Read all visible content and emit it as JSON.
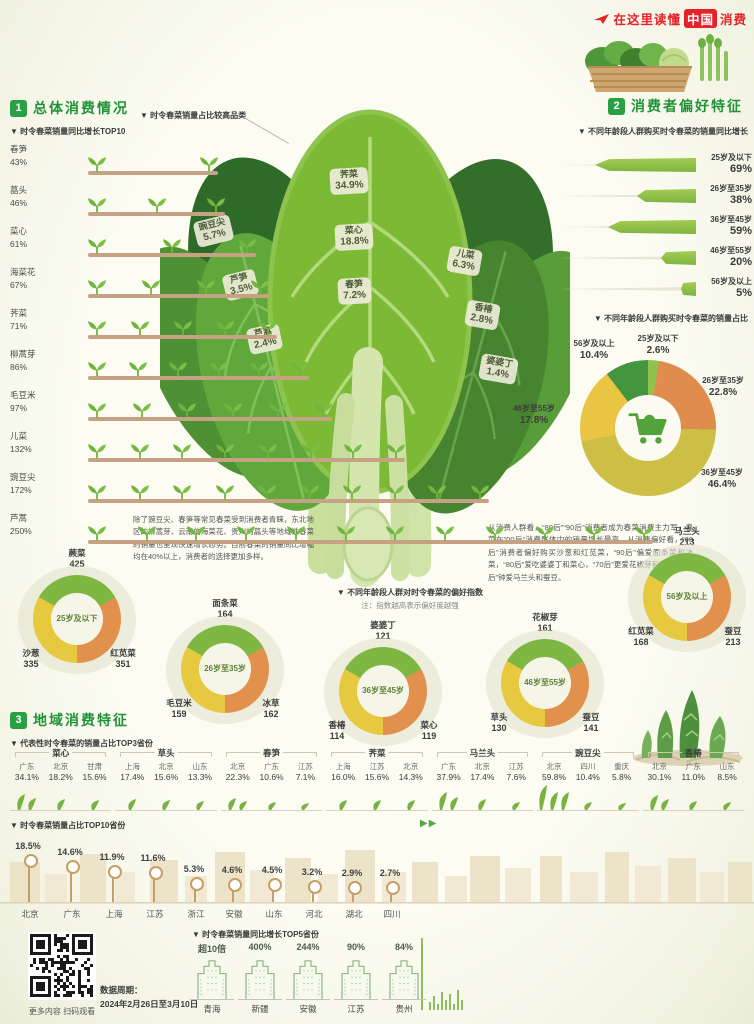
{
  "header": {
    "tagline_prefix": "在这里读懂",
    "tagline_highlight": "中国",
    "tagline_suffix": "消费",
    "accent_red": "#e62129"
  },
  "section1": {
    "badge": "1",
    "title": "总体消费情况",
    "subtitle": "▼ 时令春菜销量同比增长TOP10",
    "items": [
      {
        "name": "春笋",
        "value": "43%",
        "pct": 43,
        "sprouts": 2
      },
      {
        "name": "蕌头",
        "value": "46%",
        "pct": 46,
        "sprouts": 3
      },
      {
        "name": "菜心",
        "value": "61%",
        "pct": 61,
        "sprouts": 3
      },
      {
        "name": "海菜花",
        "value": "67%",
        "pct": 67,
        "sprouts": 4
      },
      {
        "name": "荠菜",
        "value": "71%",
        "pct": 71,
        "sprouts": 5
      },
      {
        "name": "柳蒿芽",
        "value": "86%",
        "pct": 86,
        "sprouts": 6
      },
      {
        "name": "毛豆米",
        "value": "97%",
        "pct": 97,
        "sprouts": 6
      },
      {
        "name": "儿菜",
        "value": "132%",
        "pct": 132,
        "sprouts": 8
      },
      {
        "name": "豌豆尖",
        "value": "172%",
        "pct": 172,
        "sprouts": 10
      },
      {
        "name": "芦蒿",
        "value": "250%",
        "pct": 250,
        "sprouts": 12
      }
    ]
  },
  "center_chart": {
    "caption": "▼ 时令春菜销量占比较高品类",
    "labels": [
      {
        "name": "豌豆尖",
        "value": "5.7%"
      },
      {
        "name": "芦笋",
        "value": "3.5%"
      },
      {
        "name": "芦蒿",
        "value": "2.4%"
      },
      {
        "name": "荠菜",
        "value": "34.9%"
      },
      {
        "name": "菜心",
        "value": "18.8%"
      },
      {
        "name": "春笋",
        "value": "7.2%"
      },
      {
        "name": "儿菜",
        "value": "6.3%"
      },
      {
        "name": "香椿",
        "value": "2.8%"
      },
      {
        "name": "婆婆丁",
        "value": "1.4%"
      }
    ]
  },
  "section2": {
    "badge": "2",
    "title": "消费者偏好特征",
    "growth_subtitle": "▼ 不同年龄段人群购买时令春菜的销量同比增长",
    "growth": [
      {
        "label": "25岁及以下",
        "value": "69%",
        "pct": 69
      },
      {
        "label": "26岁至35岁",
        "value": "38%",
        "pct": 38
      },
      {
        "label": "36岁至45岁",
        "value": "59%",
        "pct": 59
      },
      {
        "label": "46岁至55岁",
        "value": "20%",
        "pct": 20
      },
      {
        "label": "56岁及以上",
        "value": "5%",
        "pct": 5
      }
    ],
    "share_subtitle": "▼ 不同年龄段人群购买时令春菜的销量占比",
    "share": [
      {
        "label": "25岁及以下",
        "value": "2.6%",
        "pct": 2.6,
        "color": "#8fc34c"
      },
      {
        "label": "26岁至35岁",
        "value": "22.8%",
        "pct": 22.8,
        "color": "#e08c4c"
      },
      {
        "label": "36岁至45岁",
        "value": "46.4%",
        "pct": 46.4,
        "color": "#cdbf45"
      },
      {
        "label": "46岁至55岁",
        "value": "17.8%",
        "pct": 17.8,
        "color": "#eac543"
      },
      {
        "label": "56岁及以上",
        "value": "10.4%",
        "pct": 10.4,
        "color": "#459540"
      }
    ]
  },
  "paragraphs": {
    "left": "除了豌豆尖、春笋等常见春菜受到消费者青睐，东北地区的柳蒿芽、云南的海菜花、贵州的蕌头等地域性春菜的销量也呈现快速增长态势。目前春菜的销量同比增幅均在40%以上，消费者的选择更加多样。",
    "right": "从消费人群看，“80后”“90后”消费者成为春菜消费主力军，春菜在“00后”消费群体中的销量增长最高。从消费偏好看，“00后”消费者偏好购买沙葱和红苋菜，“90后”偏爱面条菜和冰菜，“80后”爱吃婆婆丁和菜心，“70后”更爱花椒芽和草头，“60后”钟爱马兰头和蚕豆。"
  },
  "preference": {
    "caption": "▼ 不同年龄段人群对时令春菜的偏好指数",
    "note": "注：指数越高表示偏好度越强",
    "donuts": [
      {
        "age": "25岁及以下",
        "top_name": "蕨菜",
        "top_value": "425",
        "left_name": "沙葱",
        "left_value": "335",
        "right_name": "红苋菜",
        "right_value": "351"
      },
      {
        "age": "26岁至35岁",
        "top_name": "面条菜",
        "top_value": "164",
        "left_name": "毛豆米",
        "left_value": "159",
        "right_name": "冰草",
        "right_value": "162"
      },
      {
        "age": "36岁至45岁",
        "top_name": "婆婆丁",
        "top_value": "121",
        "left_name": "香椿",
        "left_value": "114",
        "right_name": "菜心",
        "right_value": "119"
      },
      {
        "age": "46岁至55岁",
        "top_name": "花椒芽",
        "top_value": "161",
        "left_name": "草头",
        "left_value": "130",
        "right_name": "蚕豆",
        "right_value": "141"
      },
      {
        "age": "56岁及以上",
        "top_name": "马兰头",
        "top_value": "213",
        "left_name": "红苋菜",
        "left_value": "168",
        "right_name": "蚕豆",
        "right_value": "213"
      }
    ]
  },
  "section3": {
    "badge": "3",
    "title": "地域消费特征",
    "top3_subtitle": "▼ 代表性时令春菜的销量占比TOP3省份",
    "groups": [
      {
        "name": "菜心",
        "cols": [
          {
            "p": "广东",
            "v": "34.1%",
            "pct": 34.1
          },
          {
            "p": "北京",
            "v": "18.2%",
            "pct": 18.2
          },
          {
            "p": "甘肃",
            "v": "15.6%",
            "pct": 15.6
          }
        ]
      },
      {
        "name": "草头",
        "cols": [
          {
            "p": "上海",
            "v": "17.4%",
            "pct": 17.4
          },
          {
            "p": "北京",
            "v": "15.6%",
            "pct": 15.6
          },
          {
            "p": "山东",
            "v": "13.3%",
            "pct": 13.3
          }
        ]
      },
      {
        "name": "春笋",
        "cols": [
          {
            "p": "北京",
            "v": "22.3%",
            "pct": 22.3
          },
          {
            "p": "广东",
            "v": "10.6%",
            "pct": 10.6
          },
          {
            "p": "江苏",
            "v": "7.1%",
            "pct": 7.1
          }
        ]
      },
      {
        "name": "荠菜",
        "cols": [
          {
            "p": "上海",
            "v": "16.0%",
            "pct": 16
          },
          {
            "p": "江苏",
            "v": "15.6%",
            "pct": 15.6
          },
          {
            "p": "北京",
            "v": "14.3%",
            "pct": 14.3
          }
        ]
      },
      {
        "name": "马兰头",
        "cols": [
          {
            "p": "广东",
            "v": "37.9%",
            "pct": 37.9
          },
          {
            "p": "北京",
            "v": "17.4%",
            "pct": 17.4
          },
          {
            "p": "江苏",
            "v": "7.6%",
            "pct": 7.6
          }
        ]
      },
      {
        "name": "豌豆尖",
        "cols": [
          {
            "p": "北京",
            "v": "59.8%",
            "pct": 59.8
          },
          {
            "p": "四川",
            "v": "10.4%",
            "pct": 10.4
          },
          {
            "p": "重庆",
            "v": "5.8%",
            "pct": 5.8
          }
        ]
      },
      {
        "name": "香椿",
        "cols": [
          {
            "p": "北京",
            "v": "30.1%",
            "pct": 30.1
          },
          {
            "p": "广东",
            "v": "11.0%",
            "pct": 11
          },
          {
            "p": "山东",
            "v": "8.5%",
            "pct": 8.5
          }
        ]
      }
    ],
    "more_arrows": "▶▶",
    "top10_subtitle": "▼ 时令春菜销量占比TOP10省份",
    "top10": [
      {
        "p": "北京",
        "v": "18.5%",
        "pct": 18.5
      },
      {
        "p": "广东",
        "v": "14.6%",
        "pct": 14.6
      },
      {
        "p": "上海",
        "v": "11.9%",
        "pct": 11.9
      },
      {
        "p": "江苏",
        "v": "11.6%",
        "pct": 11.6
      },
      {
        "p": "浙江",
        "v": "5.3%",
        "pct": 5.3
      },
      {
        "p": "安徽",
        "v": "4.6%",
        "pct": 4.6
      },
      {
        "p": "山东",
        "v": "4.5%",
        "pct": 4.5
      },
      {
        "p": "河北",
        "v": "3.2%",
        "pct": 3.2
      },
      {
        "p": "湖北",
        "v": "2.9%",
        "pct": 2.9
      },
      {
        "p": "四川",
        "v": "2.7%",
        "pct": 2.7
      }
    ],
    "top5_subtitle": "▼ 时令春菜销量同比增长TOP5省份",
    "top5": [
      {
        "p": "青海",
        "v": "超10倍"
      },
      {
        "p": "新疆",
        "v": "400%"
      },
      {
        "p": "安徽",
        "v": "244%"
      },
      {
        "p": "江苏",
        "v": "90%"
      },
      {
        "p": "贵州",
        "v": "84%"
      }
    ]
  },
  "footer": {
    "qr_caption": "更多内容 扫码观看",
    "period_label": "数据周期：",
    "period_value": "2024年2月26日至3月10日"
  },
  "chart_data": [
    {
      "type": "bar",
      "title": "时令春菜销量同比增长TOP10",
      "categories": [
        "春笋",
        "蕌头",
        "菜心",
        "海菜花",
        "荠菜",
        "柳蒿芽",
        "毛豆米",
        "儿菜",
        "豌豆尖",
        "芦蒿"
      ],
      "values": [
        43,
        46,
        61,
        67,
        71,
        86,
        97,
        132,
        172,
        250
      ],
      "unit": "%"
    },
    {
      "type": "bar",
      "title": "时令春菜销量占比较高品类",
      "categories": [
        "荠菜",
        "菜心",
        "春笋",
        "儿菜",
        "豌豆尖",
        "芦笋",
        "香椿",
        "芦蒿",
        "婆婆丁"
      ],
      "values": [
        34.9,
        18.8,
        7.2,
        6.3,
        5.7,
        3.5,
        2.8,
        2.4,
        1.4
      ],
      "unit": "%"
    },
    {
      "type": "bar",
      "title": "不同年龄段人群购买时令春菜的销量同比增长",
      "categories": [
        "25岁及以下",
        "26岁至35岁",
        "36岁至45岁",
        "46岁至55岁",
        "56岁及以上"
      ],
      "values": [
        69,
        38,
        59,
        20,
        5
      ],
      "unit": "%"
    },
    {
      "type": "pie",
      "title": "不同年龄段人群购买时令春菜的销量占比",
      "categories": [
        "25岁及以下",
        "26岁至35岁",
        "36岁至45岁",
        "46岁至55岁",
        "56岁及以上"
      ],
      "values": [
        2.6,
        22.8,
        46.4,
        17.8,
        10.4
      ],
      "unit": "%",
      "legend_position": "around",
      "colors": [
        "#8fc34c",
        "#e08c4c",
        "#cdbf45",
        "#eac543",
        "#459540"
      ]
    },
    {
      "type": "table",
      "title": "不同年龄段人群对时令春菜的偏好指数",
      "note": "指数越高表示偏好度越强",
      "rows": [
        {
          "age": "25岁及以下",
          "items": [
            [
              "蕨菜",
              425
            ],
            [
              "红苋菜",
              351
            ],
            [
              "沙葱",
              335
            ]
          ]
        },
        {
          "age": "26岁至35岁",
          "items": [
            [
              "面条菜",
              164
            ],
            [
              "冰草",
              162
            ],
            [
              "毛豆米",
              159
            ]
          ]
        },
        {
          "age": "36岁至45岁",
          "items": [
            [
              "婆婆丁",
              121
            ],
            [
              "菜心",
              119
            ],
            [
              "香椿",
              114
            ]
          ]
        },
        {
          "age": "46岁至55岁",
          "items": [
            [
              "花椒芽",
              161
            ],
            [
              "蚕豆",
              141
            ],
            [
              "草头",
              130
            ]
          ]
        },
        {
          "age": "56岁及以上",
          "items": [
            [
              "马兰头",
              213
            ],
            [
              "蚕豆",
              213
            ],
            [
              "红苋菜",
              168
            ]
          ]
        }
      ]
    },
    {
      "type": "table",
      "title": "代表性时令春菜的销量占比TOP3省份",
      "rows": [
        {
          "veg": "菜心",
          "provinces": [
            [
              "广东",
              "34.1%"
            ],
            [
              "北京",
              "18.2%"
            ],
            [
              "甘肃",
              "15.6%"
            ]
          ]
        },
        {
          "veg": "草头",
          "provinces": [
            [
              "上海",
              "17.4%"
            ],
            [
              "北京",
              "15.6%"
            ],
            [
              "山东",
              "13.3%"
            ]
          ]
        },
        {
          "veg": "春笋",
          "provinces": [
            [
              "北京",
              "22.3%"
            ],
            [
              "广东",
              "10.6%"
            ],
            [
              "江苏",
              "7.1%"
            ]
          ]
        },
        {
          "veg": "荠菜",
          "provinces": [
            [
              "上海",
              "16.0%"
            ],
            [
              "江苏",
              "15.6%"
            ],
            [
              "北京",
              "14.3%"
            ]
          ]
        },
        {
          "veg": "马兰头",
          "provinces": [
            [
              "广东",
              "37.9%"
            ],
            [
              "北京",
              "17.4%"
            ],
            [
              "江苏",
              "7.6%"
            ]
          ]
        },
        {
          "veg": "豌豆尖",
          "provinces": [
            [
              "北京",
              "59.8%"
            ],
            [
              "四川",
              "10.4%"
            ],
            [
              "重庆",
              "5.8%"
            ]
          ]
        },
        {
          "veg": "香椿",
          "provinces": [
            [
              "北京",
              "30.1%"
            ],
            [
              "广东",
              "11.0%"
            ],
            [
              "山东",
              "8.5%"
            ]
          ]
        }
      ]
    },
    {
      "type": "bar",
      "title": "时令春菜销量占比TOP10省份",
      "categories": [
        "北京",
        "广东",
        "上海",
        "江苏",
        "浙江",
        "安徽",
        "山东",
        "河北",
        "湖北",
        "四川"
      ],
      "values": [
        18.5,
        14.6,
        11.9,
        11.6,
        5.3,
        4.6,
        4.5,
        3.2,
        2.9,
        2.7
      ],
      "unit": "%"
    },
    {
      "type": "bar",
      "title": "时令春菜销量同比增长TOP5省份",
      "categories": [
        "青海",
        "新疆",
        "安徽",
        "江苏",
        "贵州"
      ],
      "values": [
        "超10倍",
        "400%",
        "244%",
        "90%",
        "84%"
      ]
    }
  ]
}
